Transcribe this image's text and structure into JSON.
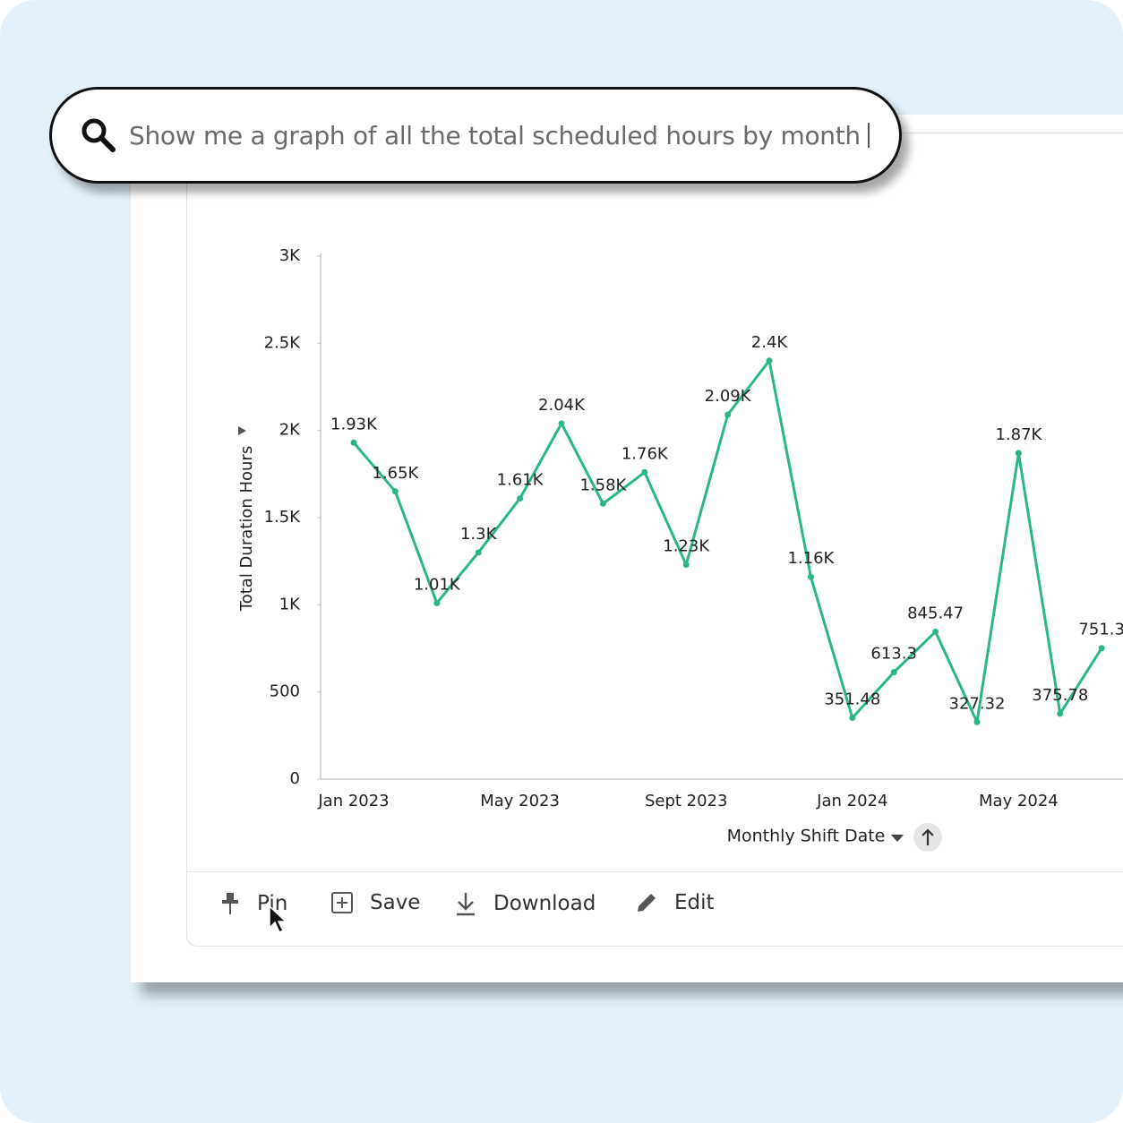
{
  "search": {
    "query": "Show me a graph of all the total scheduled hours by month"
  },
  "actions": [
    "Pin",
    "Save",
    "Download",
    "Edit"
  ],
  "chart_data": {
    "type": "line",
    "y_label": "Total Duration Hours",
    "x_label": "Monthly Shift Date",
    "categories": [
      "Jan 2023",
      null,
      null,
      null,
      "May 2023",
      null,
      null,
      null,
      "Sept 2023",
      null,
      null,
      null,
      "Jan 2024",
      null,
      null,
      null,
      "May 2024",
      null,
      null
    ],
    "values": [
      1930,
      1650,
      1010,
      1300,
      1610,
      2040,
      1580,
      1760,
      1230,
      2090,
      2400,
      1160,
      351.48,
      613.3,
      845.47,
      327.32,
      1870,
      375.78,
      751.3
    ],
    "value_labels": [
      "1.93K",
      "1.65K",
      "1.01K",
      "1.3K",
      "1.61K",
      "2.04K",
      "1.58K",
      "1.76K",
      "1.23K",
      "2.09K",
      "2.4K",
      "1.16K",
      "351.48",
      "613.3",
      "845.47",
      "327.32",
      "1.87K",
      "375.78",
      "751.3"
    ],
    "color": "#2bb784",
    "ylim": [
      0,
      3000
    ],
    "yticks": [
      0,
      500,
      {
        "value": 1000,
        "label": "1K"
      },
      {
        "value": 1500,
        "label": "1.5K"
      },
      {
        "value": 2000,
        "label": "2K"
      },
      {
        "value": 2500,
        "label": "2.5K"
      },
      {
        "value": 3000,
        "label": "3K"
      }
    ]
  }
}
